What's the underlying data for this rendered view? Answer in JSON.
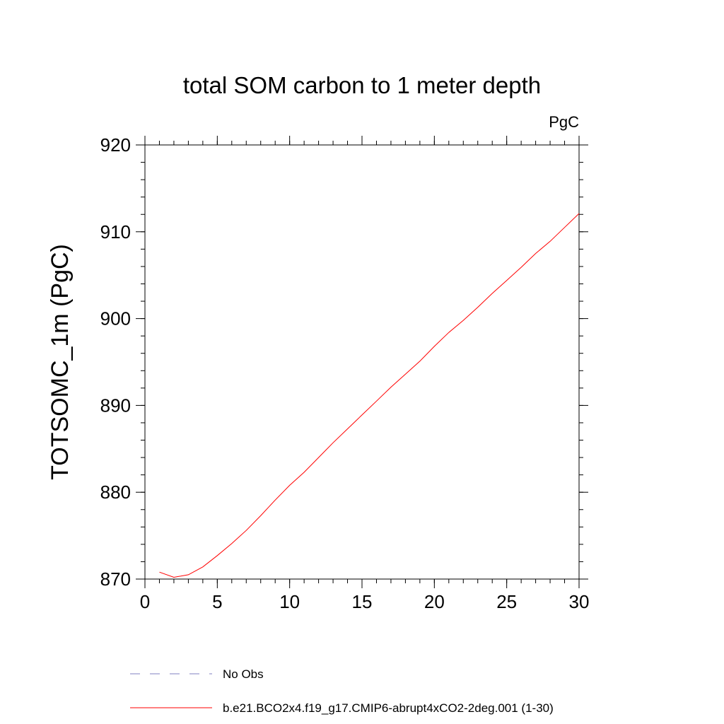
{
  "chart_data": {
    "type": "line",
    "title": "total SOM carbon to 1 meter depth",
    "units": "PgC",
    "xlabel": "",
    "ylabel": "TOTSOMC_1m  (PgC)",
    "xlim": [
      0,
      30
    ],
    "ylim": [
      870,
      920
    ],
    "x_ticks": [
      0,
      5,
      10,
      15,
      20,
      25,
      30
    ],
    "y_ticks": [
      870,
      880,
      890,
      900,
      910,
      920
    ],
    "grid": false,
    "legend_position": "bottom",
    "series": [
      {
        "name": "No Obs",
        "color": "#8080c0",
        "dash": "dashed",
        "x": [],
        "y": []
      },
      {
        "name": "b.e21.BCO2x4.f19_g17.CMIP6-abrupt4xCO2-2deg.001 (1-30)",
        "color": "#ff0000",
        "dash": "solid",
        "x": [
          1,
          2,
          3,
          4,
          5,
          6,
          7,
          8,
          9,
          10,
          11,
          12,
          13,
          14,
          15,
          16,
          17,
          18,
          19,
          20,
          21,
          22,
          23,
          24,
          25,
          26,
          27,
          28,
          29,
          30
        ],
        "y": [
          870.8,
          870.2,
          870.5,
          871.4,
          872.7,
          874.1,
          875.6,
          877.3,
          879.1,
          880.8,
          882.3,
          884.0,
          885.7,
          887.3,
          888.9,
          890.5,
          892.1,
          893.6,
          895.1,
          896.8,
          898.4,
          899.8,
          901.3,
          902.9,
          904.4,
          905.9,
          907.5,
          908.9,
          910.5,
          912.1
        ]
      }
    ]
  }
}
